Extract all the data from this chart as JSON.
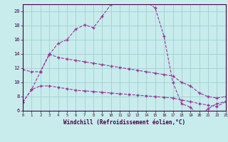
{
  "xlabel": "Windchill (Refroidissement éolien,°C)",
  "bg_color": "#c8ecec",
  "grid_color": "#a0d0d0",
  "line_color": "#993399",
  "x_main": [
    0,
    1,
    2,
    3,
    4,
    5,
    6,
    7,
    8,
    9,
    10,
    11,
    12,
    13,
    14,
    15,
    16,
    17,
    18,
    19,
    20,
    21,
    22,
    23
  ],
  "y_main": [
    7.2,
    9.0,
    11.5,
    13.9,
    15.5,
    16.0,
    17.5,
    18.1,
    17.7,
    19.3,
    21.0,
    21.3,
    21.5,
    21.7,
    21.3,
    20.5,
    16.5,
    10.0,
    7.0,
    6.5,
    5.2,
    6.3,
    7.0,
    7.3
  ],
  "x_line2": [
    0,
    1,
    2,
    3,
    4,
    5,
    6,
    7,
    8,
    9,
    10,
    11,
    12,
    13,
    14,
    15,
    16,
    17,
    18,
    19,
    20,
    21,
    22,
    23
  ],
  "y_line2": [
    11.8,
    11.5,
    11.5,
    14.0,
    13.5,
    13.3,
    13.1,
    12.9,
    12.7,
    12.5,
    12.3,
    12.1,
    11.9,
    11.7,
    11.5,
    11.3,
    11.1,
    10.9,
    10.0,
    9.5,
    8.5,
    8.0,
    7.8,
    8.0
  ],
  "x_line3": [
    0,
    1,
    2,
    3,
    4,
    5,
    6,
    7,
    8,
    9,
    10,
    11,
    12,
    13,
    14,
    15,
    16,
    17,
    18,
    19,
    20,
    21,
    22,
    23
  ],
  "y_line3": [
    7.2,
    9.0,
    9.5,
    9.5,
    9.3,
    9.1,
    8.9,
    8.8,
    8.7,
    8.6,
    8.5,
    8.4,
    8.3,
    8.2,
    8.1,
    8.0,
    7.9,
    7.8,
    7.5,
    7.3,
    7.0,
    6.8,
    6.6,
    7.3
  ],
  "ylim": [
    6,
    21
  ],
  "xlim": [
    0,
    23
  ],
  "yticks": [
    6,
    8,
    10,
    12,
    14,
    16,
    18,
    20
  ],
  "xticks": [
    0,
    1,
    2,
    3,
    4,
    5,
    6,
    7,
    8,
    9,
    10,
    11,
    12,
    13,
    14,
    15,
    16,
    17,
    18,
    19,
    20,
    21,
    22,
    23
  ]
}
